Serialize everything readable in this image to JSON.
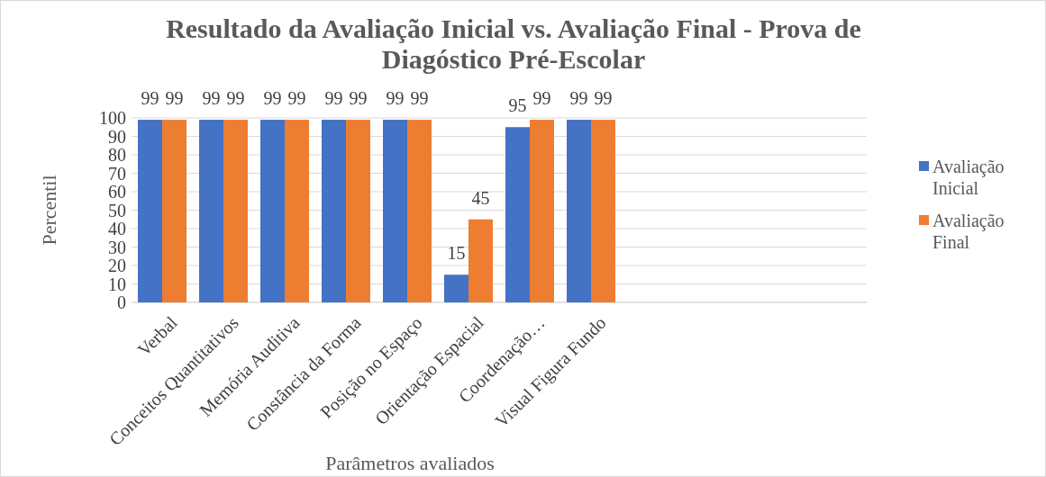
{
  "chart_data": {
    "type": "bar",
    "title": "Resultado da Avaliação Inicial vs. Avaliação Final - Prova de Diagóstico Pré-Escolar",
    "xlabel": "Parâmetros avaliados",
    "ylabel": "Percentil",
    "categories": [
      "Verbal",
      "Conceitos Quantitativos",
      "Memória Auditiva",
      "Constância da Forma",
      "Posição no Espaço",
      "Orientação Espacial",
      "Coordenação…",
      "Visual Figura Fundo",
      null,
      null,
      null,
      null
    ],
    "series": [
      {
        "name": "Avaliação Inicial",
        "color": "#4472c4",
        "values": [
          99,
          99,
          99,
          99,
          99,
          15,
          95,
          99,
          null,
          null,
          null,
          null
        ]
      },
      {
        "name": "Avaliação Final",
        "color": "#ed7d31",
        "values": [
          99,
          99,
          99,
          99,
          99,
          45,
          99,
          99,
          null,
          null,
          null,
          null
        ]
      }
    ],
    "ylim": [
      0,
      100
    ],
    "yticks": [
      0,
      10,
      20,
      30,
      40,
      50,
      60,
      70,
      80,
      90,
      100
    ],
    "grid": "y",
    "legend": "right",
    "data_labels": true
  }
}
